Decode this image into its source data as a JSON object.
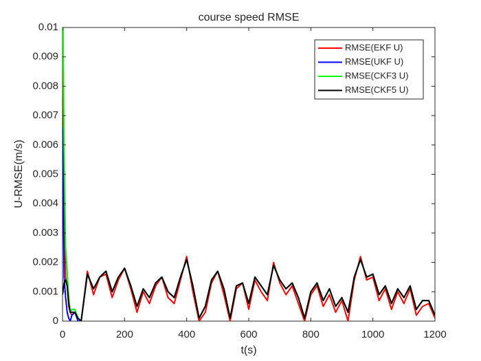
{
  "chart_data": {
    "type": "line",
    "title": "course speed RMSE",
    "x_label": "t(s)",
    "y_label": "U-RMSE(m/s)",
    "x": [
      0,
      5,
      10,
      15,
      20,
      25,
      30,
      40,
      50,
      60,
      80,
      100,
      120,
      140,
      160,
      180,
      200,
      220,
      240,
      260,
      280,
      300,
      320,
      340,
      360,
      380,
      400,
      420,
      440,
      460,
      480,
      500,
      520,
      540,
      560,
      580,
      600,
      620,
      640,
      660,
      680,
      700,
      720,
      740,
      760,
      780,
      800,
      820,
      840,
      860,
      880,
      900,
      920,
      940,
      960,
      980,
      1000,
      1020,
      1040,
      1060,
      1080,
      1100,
      1120,
      1140,
      1160,
      1180,
      1200
    ],
    "series": [
      {
        "name": "RMSE(EKF U)",
        "color": "#ff0000",
        "values": [
          0.012,
          0.004,
          0.0015,
          0.0012,
          0.0005,
          0.0003,
          0.0002,
          0.0003,
          0.0001,
          0.0,
          0.0017,
          0.0009,
          0.0015,
          0.0016,
          0.0008,
          0.0014,
          0.0018,
          0.0011,
          0.0003,
          0.001,
          0.0006,
          0.0012,
          0.0015,
          0.0008,
          0.0006,
          0.0014,
          0.0022,
          0.001,
          0.0,
          0.0003,
          0.0013,
          0.0017,
          0.0009,
          0.0,
          0.0011,
          0.0013,
          0.0004,
          0.0014,
          0.001,
          0.0007,
          0.002,
          0.0013,
          0.0009,
          0.0012,
          0.0006,
          0.0,
          0.0009,
          0.0012,
          0.0005,
          0.0009,
          0.0003,
          0.0007,
          0.0,
          0.0014,
          0.0022,
          0.0014,
          0.0015,
          0.0007,
          0.0011,
          0.0004,
          0.001,
          0.0006,
          0.0011,
          0.0002,
          0.0005,
          0.0006,
          0.0001
        ]
      },
      {
        "name": "RMSE(UKF U)",
        "color": "#0000ff",
        "values": [
          0.0066,
          0.0015,
          0.0008,
          0.0003,
          0.0001,
          0.0,
          0.0002,
          0.0003,
          0.0,
          0.0,
          0.0016,
          0.0011,
          0.0015,
          0.0017,
          0.001,
          0.0015,
          0.0018,
          0.0012,
          0.0005,
          0.0011,
          0.0008,
          0.0013,
          0.0015,
          0.001,
          0.0008,
          0.0015,
          0.0021,
          0.0012,
          0.0001,
          0.0005,
          0.0014,
          0.0017,
          0.0011,
          0.0001,
          0.0012,
          0.0013,
          0.0006,
          0.0015,
          0.0012,
          0.0009,
          0.0019,
          0.0014,
          0.0011,
          0.0013,
          0.0008,
          0.0001,
          0.001,
          0.0013,
          0.0007,
          0.0011,
          0.0005,
          0.0008,
          0.0003,
          0.0015,
          0.0021,
          0.0015,
          0.0016,
          0.0009,
          0.0012,
          0.0006,
          0.0011,
          0.0008,
          0.0012,
          0.0004,
          0.0007,
          0.0007,
          0.0002
        ]
      },
      {
        "name": "RMSE(CKF3 U)",
        "color": "#00ff00",
        "values": [
          0.012,
          0.006,
          0.0025,
          0.0017,
          0.0008,
          0.0003,
          0.0004,
          0.0004,
          0.0001,
          0.0,
          0.0016,
          0.0011,
          0.0015,
          0.0017,
          0.001,
          0.0015,
          0.0018,
          0.0012,
          0.0005,
          0.0011,
          0.0008,
          0.0013,
          0.0015,
          0.001,
          0.0008,
          0.0015,
          0.0021,
          0.0012,
          0.0001,
          0.0005,
          0.0014,
          0.0017,
          0.0011,
          0.0001,
          0.0012,
          0.0013,
          0.0006,
          0.0015,
          0.0012,
          0.0009,
          0.0019,
          0.0014,
          0.0011,
          0.0013,
          0.0008,
          0.0001,
          0.001,
          0.0013,
          0.0007,
          0.0011,
          0.0005,
          0.0008,
          0.0003,
          0.0015,
          0.0021,
          0.0015,
          0.0016,
          0.0009,
          0.0012,
          0.0006,
          0.0011,
          0.0008,
          0.0012,
          0.0004,
          0.0007,
          0.0007,
          0.0002
        ]
      },
      {
        "name": "RMSE(CKF5 U)",
        "color": "#000000",
        "values": [
          0.0009,
          0.0013,
          0.0014,
          0.0012,
          0.0006,
          0.0003,
          0.0003,
          0.0003,
          0.0001,
          0.0,
          0.0016,
          0.0011,
          0.0015,
          0.0017,
          0.001,
          0.0015,
          0.0018,
          0.0012,
          0.0005,
          0.0011,
          0.0008,
          0.0013,
          0.0015,
          0.001,
          0.0008,
          0.0015,
          0.0021,
          0.0012,
          0.0001,
          0.0005,
          0.0014,
          0.0017,
          0.0011,
          0.0001,
          0.0012,
          0.0013,
          0.0006,
          0.0015,
          0.0012,
          0.0009,
          0.0019,
          0.0014,
          0.0011,
          0.0013,
          0.0008,
          0.0001,
          0.001,
          0.0013,
          0.0007,
          0.0011,
          0.0005,
          0.0008,
          0.0003,
          0.0015,
          0.0021,
          0.0015,
          0.0016,
          0.0009,
          0.0012,
          0.0006,
          0.0011,
          0.0008,
          0.0012,
          0.0004,
          0.0007,
          0.0007,
          0.0002
        ]
      }
    ],
    "xlim": [
      0,
      1200
    ],
    "xticks": [
      0,
      200,
      400,
      600,
      800,
      1000,
      1200
    ],
    "ylim": [
      0,
      0.01
    ],
    "yticks": [
      0,
      0.001,
      0.002,
      0.003,
      0.004,
      0.005,
      0.006,
      0.007,
      0.008,
      0.009,
      0.01
    ],
    "legend": "upper right"
  }
}
